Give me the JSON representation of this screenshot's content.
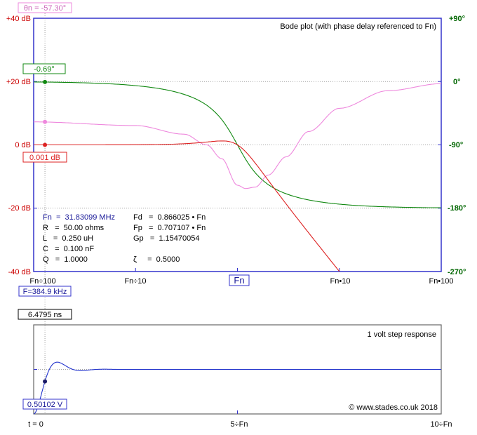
{
  "bode": {
    "title": "Bode plot (with phase delay referenced to Fn)",
    "gain_ticks": [
      "+40 dB",
      "+20 dB",
      "0 dB",
      "-20 dB",
      "-40 dB"
    ],
    "phase_ticks": [
      "+90°",
      "0°",
      "-90°",
      "-180°",
      "-270°"
    ],
    "freq_ticks": [
      "Fn÷100",
      "Fn÷10",
      "Fn",
      "Fn•10",
      "Fn•100"
    ],
    "cursor_phase_label": "θn = -57.30°",
    "cursor_green_label": "-0.69°",
    "cursor_red_label": "0.001 dB",
    "cursor_freq_label": "F=384.9 kHz",
    "info": {
      "col1": [
        "Fn  =  31.83099 MHz",
        "R   =  50.00 ohms",
        "L   =  0.250 uH",
        "C   =  0.100 nF",
        "Q   =  1.0000"
      ],
      "col2": [
        "Fd   =  0.866025 • Fn",
        "Fp   =  0.707107 • Fn",
        "Gp   =  1.15470054",
        "ζ     =  0.5000"
      ]
    }
  },
  "step": {
    "title": "1 volt step response",
    "copyright": "© www.stades.co.uk 2018",
    "cursor_time_label": "6.4795 ns",
    "cursor_value_label": "0.50102 V",
    "time_ticks": [
      "t = 0",
      "5÷Fn",
      "10÷Fn"
    ]
  },
  "colors": {
    "frame": "#3333cc",
    "gain_axis": "#cc0000",
    "phase_axis": "#006600",
    "red_trace": "#dd2222",
    "green_trace": "#118811",
    "pink_trace": "#ee88dd",
    "step_trace": "#2233cc"
  },
  "chart_data": [
    {
      "type": "line",
      "title": "Bode plot (with phase delay referenced to Fn)",
      "x_scale": "log",
      "x_unit": "Fn",
      "xlim": [
        0.01,
        100
      ],
      "ylim_gain_db": [
        -40,
        40
      ],
      "ylim_phase_deg": [
        -270,
        90
      ],
      "Q": 1.0,
      "series": [
        {
          "x": [
            0.01,
            0.1,
            0.3,
            0.5,
            0.707,
            0.85,
            1,
            1.2,
            1.5,
            2,
            3,
            5,
            10
          ],
          "gain_db": [
            0.001,
            0.05,
            0.34,
            0.72,
            1.25,
            0.9,
            0,
            -1.5,
            -3.9,
            -7.6,
            -13.9,
            -21.5,
            -34.5
          ]
        },
        {
          "x": [
            0.01,
            0.1,
            0.3,
            0.5,
            0.7,
            1,
            1.5,
            2,
            3,
            5,
            10,
            30,
            100
          ],
          "phase_deg": [
            -0.57,
            -5.8,
            -18.3,
            -33.7,
            -53.5,
            -90,
            -129.8,
            -146.3,
            -159.4,
            -168.1,
            -174.2,
            -178.1,
            -179.4
          ]
        },
        {
          "x": [
            0.01,
            0.1,
            0.3,
            0.5,
            0.7,
            1,
            1.2,
            1.5,
            2,
            3,
            5,
            10,
            30,
            100
          ],
          "phase_deg": [
            -57.3,
            -62.5,
            -74.8,
            -90.0,
            -109.6,
            -147.3,
            -152.0,
            -150.0,
            -133.0,
            -107.0,
            -71.0,
            -38.0,
            -13.0,
            -3.0
          ]
        }
      ]
    },
    {
      "type": "line",
      "title": "1 volt step response",
      "x_unit": "1÷Fn",
      "xlim": [
        0,
        10
      ],
      "ylim_volts": [
        0,
        2
      ],
      "final_value_volts": 1.0,
      "series": [
        {
          "t": [
            0,
            0.05,
            0.1,
            0.2,
            0.3,
            0.4,
            0.5,
            0.6,
            0.7,
            0.8,
            1.0,
            1.2,
            1.5,
            2.0,
            3.0,
            5.0,
            10.0
          ],
          "v": [
            0,
            0.03,
            0.12,
            0.49,
            0.86,
            1.09,
            1.16,
            1.13,
            1.07,
            1.02,
            0.98,
            0.99,
            1.0,
            1.0,
            1.0,
            1.0,
            1.0
          ]
        }
      ]
    }
  ]
}
